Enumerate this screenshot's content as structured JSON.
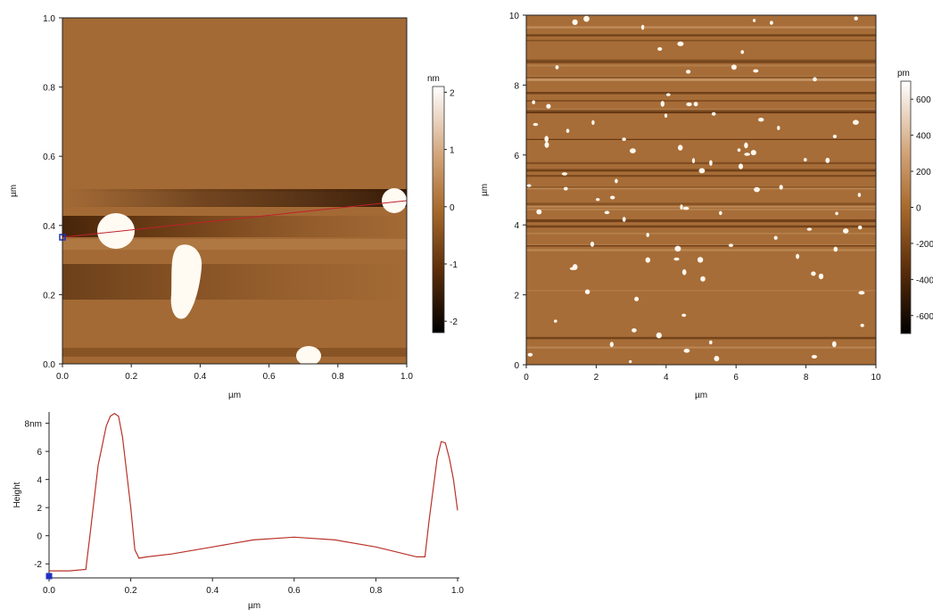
{
  "chart_data": [
    {
      "type": "heatmap",
      "title": "",
      "xlabel": "µm",
      "ylabel": "µm",
      "xlim": [
        0,
        1.0
      ],
      "ylim": [
        0,
        1.0
      ],
      "xticks": [
        "0.0",
        "0.2",
        "0.4",
        "0.6",
        "0.8",
        "1.0"
      ],
      "yticks": [
        "0.0",
        "0.2",
        "0.4",
        "0.6",
        "0.8",
        "1.0"
      ],
      "colorbar": {
        "unit": "nm",
        "range": [
          -2.2,
          2.1
        ],
        "ticks": [
          "2",
          "1",
          "0",
          "-1",
          "-2"
        ]
      },
      "profile_line": {
        "x": [
          0.0,
          1.0
        ],
        "y": [
          0.365,
          0.47
        ]
      },
      "particles": [
        {
          "x": 0.16,
          "y": 0.38
        },
        {
          "x": 0.35,
          "y": 0.23
        },
        {
          "x": 0.96,
          "y": 0.47
        },
        {
          "x": 0.72,
          "y": 0.02
        }
      ]
    },
    {
      "type": "heatmap",
      "title": "",
      "xlabel": "µm",
      "ylabel": "µm",
      "xlim": [
        0,
        10
      ],
      "ylim": [
        0,
        10
      ],
      "xticks": [
        "0",
        "2",
        "4",
        "6",
        "8",
        "10"
      ],
      "yticks": [
        "0",
        "2",
        "4",
        "6",
        "8",
        "10"
      ],
      "colorbar": {
        "unit": "pm",
        "range": [
          -700,
          700
        ],
        "ticks": [
          "600",
          "400",
          "200",
          "0",
          "-200",
          "-400",
          "-600"
        ]
      }
    },
    {
      "type": "line",
      "title": "",
      "xlabel": "µm",
      "ylabel": "Height",
      "xlim": [
        0,
        1.0
      ],
      "ylim": [
        -3,
        8.8
      ],
      "xticks": [
        "0.0",
        "0.2",
        "0.4",
        "0.6",
        "0.8",
        "1.0"
      ],
      "yticks": [
        "8nm",
        "6",
        "4",
        "2",
        "0",
        "-2"
      ],
      "series": [
        {
          "x": [
            0.0,
            0.05,
            0.09,
            0.1,
            0.12,
            0.14,
            0.15,
            0.16,
            0.17,
            0.18,
            0.2,
            0.21,
            0.22,
            0.24,
            0.3,
            0.4,
            0.5,
            0.6,
            0.7,
            0.8,
            0.9,
            0.92,
            0.93,
            0.95,
            0.96,
            0.97,
            0.98,
            0.99,
            1.0
          ],
          "y": [
            -2.5,
            -2.5,
            -2.4,
            0.0,
            5.0,
            7.8,
            8.5,
            8.7,
            8.5,
            7.0,
            2.0,
            -1.0,
            -1.6,
            -1.5,
            -1.3,
            -0.8,
            -0.3,
            -0.1,
            -0.3,
            -0.8,
            -1.5,
            -1.5,
            1.0,
            5.5,
            6.7,
            6.6,
            5.5,
            4.0,
            1.8
          ]
        }
      ]
    }
  ]
}
